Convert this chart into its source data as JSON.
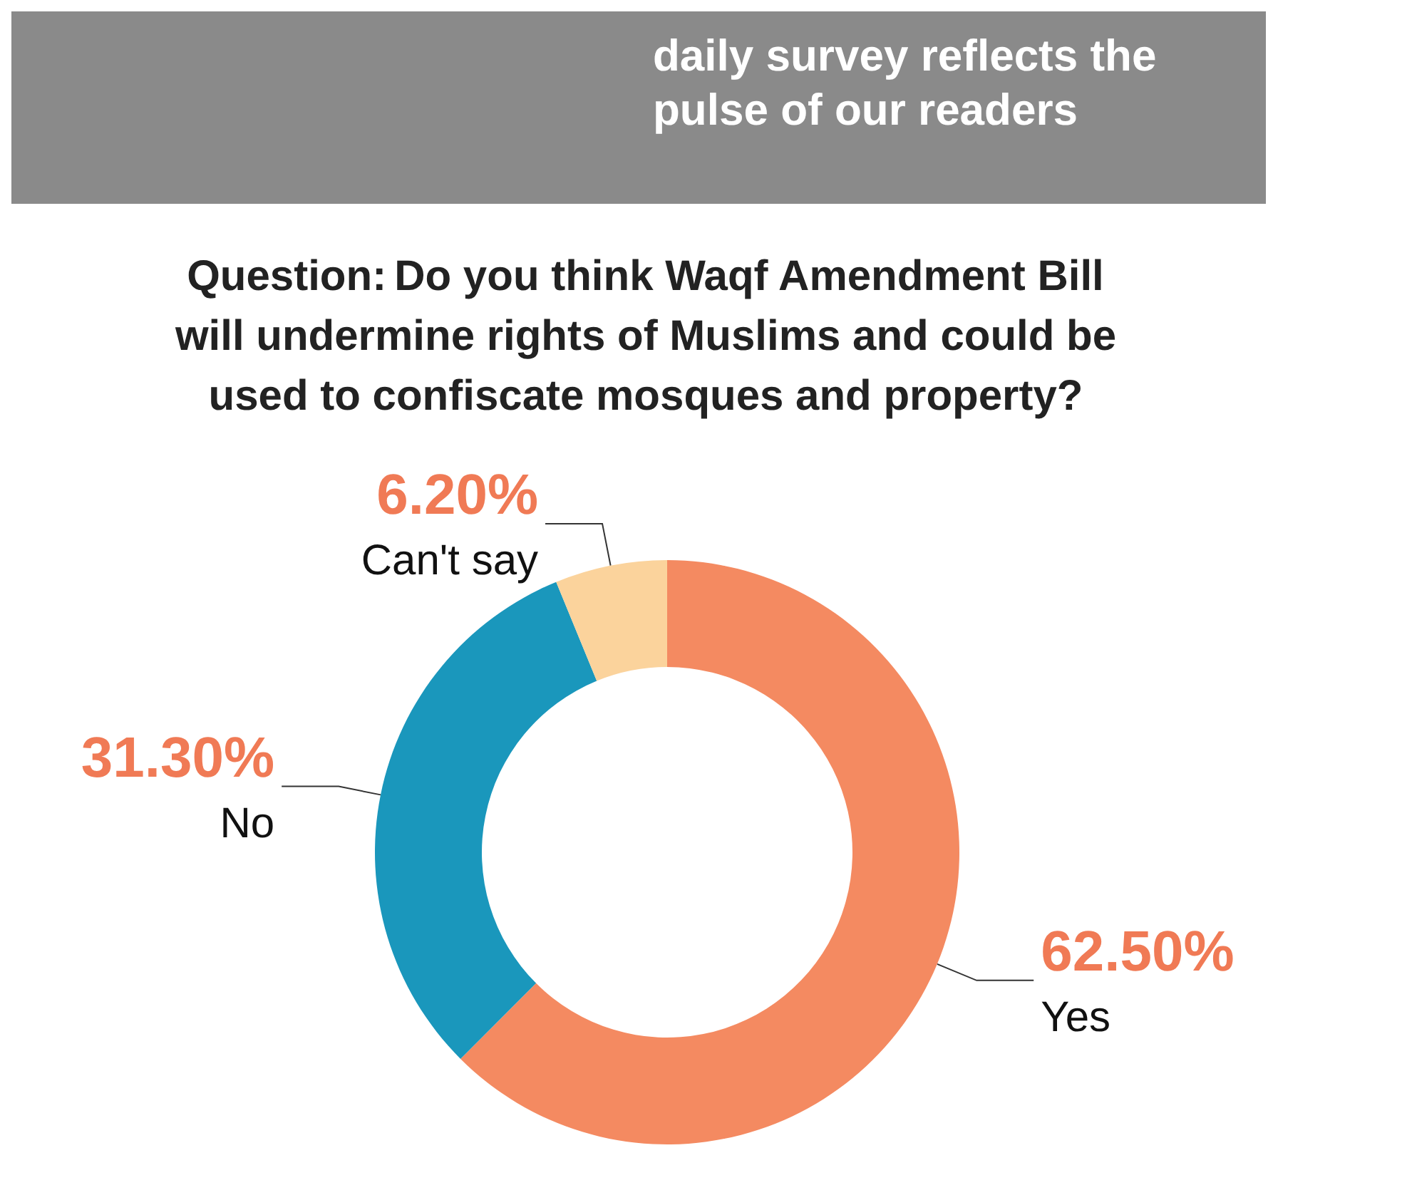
{
  "chart_data": {
    "type": "donut",
    "subtitle": "daily survey reflects the pulse of our readers",
    "title": "Question: Do you think Waqf Amendment Bill will undermine rights of Muslims and could be used to confiscate mosques and property?",
    "categories": [
      "Yes",
      "No",
      "Can't say"
    ],
    "values": [
      62.5,
      31.3,
      6.2
    ],
    "colors": [
      "#f48a61",
      "#1a97bc",
      "#fbd39c"
    ],
    "value_labels": [
      "62.50%",
      "31.30%",
      "6.20%"
    ],
    "legend": false
  }
}
